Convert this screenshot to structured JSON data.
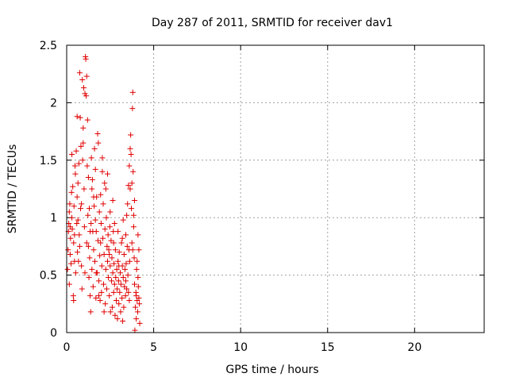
{
  "chart_data": {
    "type": "scatter",
    "title": "Day 287 of 2011, SRMTID for receiver dav1",
    "xlabel": "GPS time / hours",
    "ylabel": "SRMTID / TECUs",
    "xlim": [
      0,
      24
    ],
    "ylim": [
      0,
      2.5
    ],
    "xticks": [
      0,
      5,
      10,
      15,
      20
    ],
    "yticks": [
      0,
      0.5,
      1,
      1.5,
      2,
      2.5
    ],
    "xtick_labels": [
      "0",
      "5",
      "10",
      "15",
      "20"
    ],
    "ytick_labels": [
      "0",
      "0.5",
      "1",
      "1.5",
      "2",
      "2.5"
    ],
    "grid": true,
    "marker": "+",
    "series": [
      {
        "name": "dav1",
        "color": "#e00000",
        "points": [
          [
            0.05,
            0.55
          ],
          [
            0.08,
            0.72
          ],
          [
            0.1,
            0.88
          ],
          [
            0.12,
            0.95
          ],
          [
            0.15,
            1.05
          ],
          [
            0.18,
            1.12
          ],
          [
            0.2,
            0.68
          ],
          [
            0.22,
            0.82
          ],
          [
            0.25,
            0.6
          ],
          [
            0.28,
            1.22
          ],
          [
            0.3,
            1.0
          ],
          [
            0.32,
            0.9
          ],
          [
            0.35,
            1.27
          ],
          [
            0.38,
            0.32
          ],
          [
            0.4,
            0.78
          ],
          [
            0.42,
            1.1
          ],
          [
            0.45,
            0.85
          ],
          [
            0.48,
            1.45
          ],
          [
            0.5,
            1.38
          ],
          [
            0.52,
            0.52
          ],
          [
            0.55,
            1.58
          ],
          [
            0.58,
            0.95
          ],
          [
            0.6,
            1.18
          ],
          [
            0.62,
            0.7
          ],
          [
            0.65,
            1.3
          ],
          [
            0.68,
            0.62
          ],
          [
            0.7,
            1.47
          ],
          [
            0.72,
            0.85
          ],
          [
            0.75,
            2.26
          ],
          [
            0.78,
            1.87
          ],
          [
            0.8,
            1.08
          ],
          [
            0.82,
            1.62
          ],
          [
            0.85,
            1.12
          ],
          [
            0.88,
            0.38
          ],
          [
            0.9,
            2.2
          ],
          [
            0.92,
            1.5
          ],
          [
            0.95,
            1.78
          ],
          [
            0.98,
            2.13
          ],
          [
            1.0,
            1.25
          ],
          [
            1.02,
            0.92
          ],
          [
            1.05,
            2.08
          ],
          [
            1.08,
            2.4
          ],
          [
            1.1,
            2.38
          ],
          [
            1.12,
            2.06
          ],
          [
            1.15,
            2.23
          ],
          [
            1.18,
            1.45
          ],
          [
            1.2,
            1.85
          ],
          [
            1.22,
            1.02
          ],
          [
            1.25,
            0.75
          ],
          [
            1.28,
            0.48
          ],
          [
            1.3,
            1.08
          ],
          [
            1.32,
            0.65
          ],
          [
            1.35,
            0.32
          ],
          [
            1.38,
            0.18
          ],
          [
            1.4,
            0.95
          ],
          [
            1.42,
            1.52
          ],
          [
            1.45,
            0.55
          ],
          [
            1.48,
            1.33
          ],
          [
            1.5,
            0.88
          ],
          [
            1.52,
            0.4
          ],
          [
            1.55,
            0.72
          ],
          [
            1.58,
            1.1
          ],
          [
            1.6,
            1.6
          ],
          [
            1.62,
            0.62
          ],
          [
            1.65,
            1.42
          ],
          [
            1.68,
            0.3
          ],
          [
            1.7,
            0.88
          ],
          [
            1.72,
            1.18
          ],
          [
            1.75,
            0.52
          ],
          [
            1.78,
            1.73
          ],
          [
            1.8,
            0.8
          ],
          [
            1.82,
            1.65
          ],
          [
            1.85,
            0.45
          ],
          [
            1.88,
            1.05
          ],
          [
            1.9,
            0.67
          ],
          [
            1.92,
            0.28
          ],
          [
            1.95,
            1.2
          ],
          [
            1.98,
            0.95
          ],
          [
            2.0,
            0.35
          ],
          [
            2.02,
            0.58
          ],
          [
            2.05,
            1.4
          ],
          [
            2.08,
            0.82
          ],
          [
            2.1,
            1.12
          ],
          [
            2.12,
            0.42
          ],
          [
            2.15,
            0.68
          ],
          [
            2.18,
            1.3
          ],
          [
            2.2,
            0.9
          ],
          [
            2.22,
            0.25
          ],
          [
            2.25,
            0.55
          ],
          [
            2.28,
            1.0
          ],
          [
            2.3,
            0.38
          ],
          [
            2.32,
            0.75
          ],
          [
            2.35,
            0.62
          ],
          [
            2.38,
            0.85
          ],
          [
            2.4,
            0.48
          ],
          [
            2.42,
            0.72
          ],
          [
            2.45,
            0.32
          ],
          [
            2.48,
            0.92
          ],
          [
            2.5,
            0.58
          ],
          [
            2.52,
            0.18
          ],
          [
            2.55,
            0.8
          ],
          [
            2.58,
            0.45
          ],
          [
            2.6,
            0.65
          ],
          [
            2.62,
            0.22
          ],
          [
            2.65,
            0.52
          ],
          [
            2.68,
            0.88
          ],
          [
            2.7,
            0.35
          ],
          [
            2.72,
            0.6
          ],
          [
            2.75,
            0.42
          ],
          [
            2.78,
            0.15
          ],
          [
            2.8,
            0.72
          ],
          [
            2.82,
            0.48
          ],
          [
            2.85,
            0.28
          ],
          [
            2.88,
            0.55
          ],
          [
            2.9,
            0.38
          ],
          [
            2.92,
            0.12
          ],
          [
            2.95,
            0.62
          ],
          [
            2.98,
            0.45
          ],
          [
            3.0,
            0.25
          ],
          [
            3.02,
            0.7
          ],
          [
            3.05,
            0.35
          ],
          [
            3.08,
            0.52
          ],
          [
            3.1,
            0.18
          ],
          [
            3.12,
            0.42
          ],
          [
            3.15,
            0.78
          ],
          [
            3.18,
            0.3
          ],
          [
            3.2,
            0.58
          ],
          [
            3.22,
            0.1
          ],
          [
            3.25,
            0.48
          ],
          [
            3.28,
            0.22
          ],
          [
            3.3,
            0.68
          ],
          [
            3.32,
            0.4
          ],
          [
            3.35,
            0.55
          ],
          [
            3.38,
            0.32
          ],
          [
            3.4,
            0.85
          ],
          [
            3.42,
            0.6
          ],
          [
            3.45,
            0.38
          ],
          [
            3.48,
            0.75
          ],
          [
            3.5,
            1.12
          ],
          [
            3.52,
            0.5
          ],
          [
            3.55,
            1.28
          ],
          [
            3.58,
            0.72
          ],
          [
            3.6,
            1.45
          ],
          [
            3.62,
            0.62
          ],
          [
            3.65,
            1.6
          ],
          [
            3.68,
            1.72
          ],
          [
            3.7,
            1.55
          ],
          [
            3.72,
            1.08
          ],
          [
            3.75,
            0.78
          ],
          [
            3.78,
            1.95
          ],
          [
            3.8,
            2.09
          ],
          [
            3.82,
            1.4
          ],
          [
            3.85,
            0.92
          ],
          [
            3.88,
            0.65
          ],
          [
            3.9,
            0.42
          ],
          [
            3.92,
            0.02
          ],
          [
            3.95,
            0.22
          ],
          [
            3.98,
            0.35
          ],
          [
            4.0,
            0.12
          ],
          [
            4.02,
            0.55
          ],
          [
            4.05,
            0.28
          ],
          [
            4.08,
            0.18
          ],
          [
            4.1,
            0.85
          ],
          [
            4.12,
            0.4
          ],
          [
            4.15,
            0.3
          ],
          [
            4.18,
            0.25
          ],
          [
            4.2,
            0.08
          ],
          [
            0.15,
            0.42
          ],
          [
            0.4,
            0.28
          ],
          [
            0.65,
            0.98
          ],
          [
            0.85,
            0.58
          ],
          [
            1.15,
            0.78
          ],
          [
            1.45,
            1.25
          ],
          [
            1.7,
            0.52
          ],
          [
            1.95,
            0.78
          ],
          [
            2.25,
            1.25
          ],
          [
            2.5,
            1.05
          ],
          [
            2.75,
            0.95
          ],
          [
            3.0,
            0.58
          ],
          [
            3.25,
            0.98
          ],
          [
            3.55,
            0.35
          ],
          [
            3.75,
            1.3
          ],
          [
            3.9,
            1.15
          ],
          [
            4.1,
            0.48
          ],
          [
            0.3,
            1.55
          ],
          [
            0.6,
            1.88
          ],
          [
            0.95,
            1.65
          ],
          [
            1.25,
            1.35
          ],
          [
            1.55,
            1.18
          ],
          [
            2.05,
            1.52
          ],
          [
            2.35,
            1.38
          ],
          [
            2.65,
            1.15
          ],
          [
            3.45,
            1.02
          ],
          [
            3.65,
            1.25
          ],
          [
            3.85,
            1.02
          ],
          [
            4.05,
            0.62
          ],
          [
            0.2,
            0.92
          ],
          [
            0.45,
            0.62
          ],
          [
            0.75,
            0.75
          ],
          [
            1.05,
            0.52
          ],
          [
            1.35,
            0.88
          ],
          [
            1.65,
            0.98
          ],
          [
            1.85,
            0.32
          ],
          [
            2.15,
            0.18
          ],
          [
            2.45,
            0.68
          ],
          [
            2.7,
            0.78
          ],
          [
            2.95,
            0.88
          ],
          [
            3.2,
            0.82
          ],
          [
            3.4,
            0.45
          ],
          [
            3.6,
            0.28
          ],
          [
            3.8,
            0.72
          ],
          [
            4.0,
            0.32
          ],
          [
            4.15,
            0.72
          ]
        ]
      }
    ]
  }
}
